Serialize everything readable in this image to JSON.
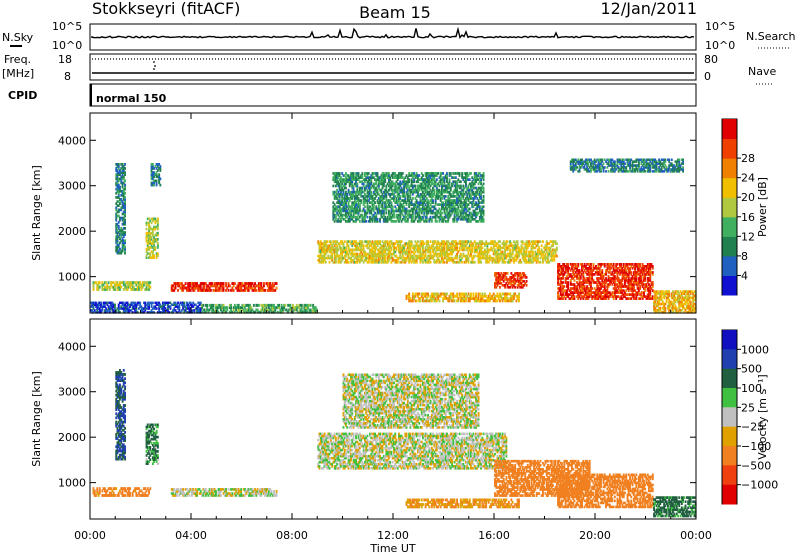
{
  "header": {
    "station": "Stokkseyri (fitACF)",
    "beam": "Beam 15",
    "date": "12/Jan/2011"
  },
  "sky_panel": {
    "left_label": "N.Sky",
    "right_label": "N.Search",
    "tick_top": "10^5",
    "tick_bottom": "10^0",
    "right_tick_top": "10^5",
    "right_tick_bottom": "10^0"
  },
  "freq_panel": {
    "left_label_1": "Freq.",
    "left_label_2": "[MHz]",
    "right_label": "Nave",
    "tick_top": "18",
    "tick_bottom": "8",
    "right_tick_top": "80",
    "right_tick_bottom": "0"
  },
  "cpid": {
    "label": "CPID",
    "mode": "normal 150"
  },
  "colors": {
    "velocity_ground": "#c0c0c0",
    "power_scale": [
      "#1010d0",
      "#2060c0",
      "#208050",
      "#40b060",
      "#b0c840",
      "#f0c000",
      "#f08000",
      "#f04000",
      "#e00000"
    ],
    "velocity_scale": [
      "#1010c0",
      "#2040b0",
      "#206040",
      "#40c040",
      "#c0c0c0",
      "#e0a000",
      "#f08020",
      "#f04010",
      "#e00000"
    ]
  },
  "chart_data": [
    {
      "type": "heatmap",
      "name": "power",
      "x": {
        "label": "",
        "unit": "UT hours",
        "range": [
          0,
          24
        ],
        "ticks": [
          0,
          4,
          8,
          12,
          16,
          20,
          24
        ]
      },
      "y": {
        "label": "Slant Range [km]",
        "range": [
          200,
          4600
        ],
        "ticks": [
          "1000",
          "2000",
          "3000",
          "4000"
        ]
      },
      "colorbar": {
        "label": "Power [dB]",
        "range": [
          0,
          32
        ],
        "ticks": [
          "4",
          "8",
          "12",
          "16",
          "20",
          "24",
          "28"
        ]
      },
      "regions": [
        {
          "t": [
            0.0,
            4.4
          ],
          "r": [
            200,
            450
          ],
          "level": 4
        },
        {
          "t": [
            0.1,
            2.4
          ],
          "r": [
            700,
            900
          ],
          "level": 16
        },
        {
          "t": [
            1.0,
            1.4
          ],
          "r": [
            1500,
            3500
          ],
          "level": 8
        },
        {
          "t": [
            2.2,
            2.7
          ],
          "r": [
            1400,
            2300
          ],
          "level": 16
        },
        {
          "t": [
            2.4,
            2.8
          ],
          "r": [
            3000,
            3500
          ],
          "level": 8
        },
        {
          "t": [
            3.2,
            7.4
          ],
          "r": [
            680,
            880
          ],
          "level": 28
        },
        {
          "t": [
            4.4,
            9.0
          ],
          "r": [
            200,
            400
          ],
          "level": 12
        },
        {
          "t": [
            9.0,
            18.5
          ],
          "r": [
            1300,
            1800
          ],
          "level": 18
        },
        {
          "t": [
            9.6,
            15.6
          ],
          "r": [
            2200,
            3300
          ],
          "level": 10
        },
        {
          "t": [
            12.5,
            17.0
          ],
          "r": [
            450,
            650
          ],
          "level": 20
        },
        {
          "t": [
            16.0,
            17.3
          ],
          "r": [
            750,
            1100
          ],
          "level": 28
        },
        {
          "t": [
            18.5,
            22.3
          ],
          "r": [
            500,
            1300
          ],
          "level": 28
        },
        {
          "t": [
            19.0,
            23.5
          ],
          "r": [
            3300,
            3600
          ],
          "level": 8
        },
        {
          "t": [
            22.3,
            24.0
          ],
          "r": [
            200,
            700
          ],
          "level": 20
        }
      ]
    },
    {
      "type": "heatmap",
      "name": "velocity",
      "x": {
        "label": "Time UT",
        "unit": "UT hours",
        "range": [
          0,
          24
        ],
        "ticks": [
          "00:00",
          "04:00",
          "08:00",
          "12:00",
          "16:00",
          "20:00",
          "00:00"
        ]
      },
      "y": {
        "label": "Slant Range [km]",
        "range": [
          200,
          4600
        ],
        "ticks": [
          "1000",
          "2000",
          "3000",
          "4000"
        ]
      },
      "colorbar": {
        "label": "Velocity [m s⁻¹]",
        "range": [
          -1200,
          1200
        ],
        "ticks": [
          "1000",
          "500",
          "100",
          "25",
          "−25",
          "−100",
          "−500",
          "−1000"
        ]
      },
      "regions": [
        {
          "t": [
            0.1,
            2.4
          ],
          "r": [
            700,
            900
          ],
          "level": -150
        },
        {
          "t": [
            1.0,
            1.4
          ],
          "r": [
            1500,
            3500
          ],
          "level": 300
        },
        {
          "t": [
            2.2,
            2.7
          ],
          "r": [
            1400,
            2300
          ],
          "level": 80
        },
        {
          "t": [
            3.2,
            7.4
          ],
          "r": [
            700,
            880
          ],
          "level": 0
        },
        {
          "t": [
            9.0,
            16.5
          ],
          "r": [
            1300,
            2100
          ],
          "level": 0
        },
        {
          "t": [
            10.0,
            15.4
          ],
          "r": [
            2200,
            3400
          ],
          "level": 0
        },
        {
          "t": [
            12.5,
            17.0
          ],
          "r": [
            450,
            650
          ],
          "level": -100
        },
        {
          "t": [
            16.0,
            19.8
          ],
          "r": [
            700,
            1500
          ],
          "level": -300
        },
        {
          "t": [
            18.5,
            22.3
          ],
          "r": [
            450,
            1200
          ],
          "level": -250
        },
        {
          "t": [
            22.3,
            24.0
          ],
          "r": [
            250,
            700
          ],
          "level": 100
        }
      ]
    }
  ]
}
